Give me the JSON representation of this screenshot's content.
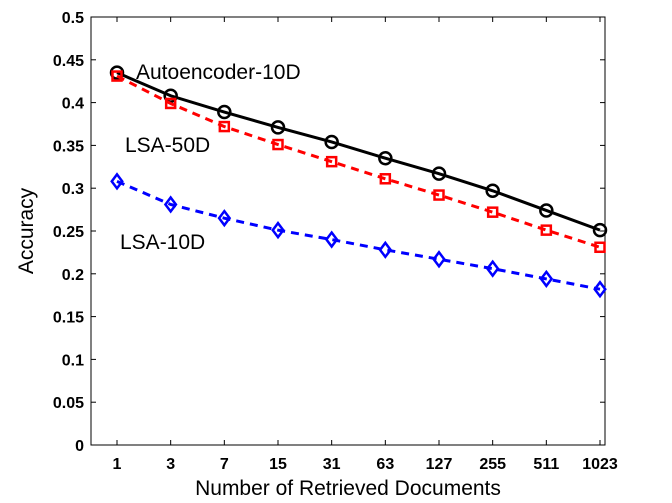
{
  "chart_data": {
    "type": "line",
    "title": "",
    "xlabel": "Number of Retrieved Documents",
    "ylabel": "Accuracy",
    "x": [
      "1",
      "3",
      "7",
      "15",
      "31",
      "63",
      "127",
      "255",
      "511",
      "1023"
    ],
    "ylim": [
      0,
      0.5
    ],
    "yticks": [
      "0",
      "0.05",
      "0.1",
      "0.15",
      "0.2",
      "0.25",
      "0.3",
      "0.35",
      "0.4",
      "0.45",
      "0.5"
    ],
    "grid": false,
    "legend": "none",
    "series": [
      {
        "name": "Autoencoder-10D",
        "color": "#000000",
        "line_style": "solid",
        "marker": "circle",
        "values": [
          0.435,
          0.408,
          0.389,
          0.371,
          0.354,
          0.335,
          0.317,
          0.297,
          0.274,
          0.251
        ]
      },
      {
        "name": "LSA-50D",
        "color": "#ff0000",
        "line_style": "dashed",
        "marker": "square",
        "values": [
          0.431,
          0.399,
          0.372,
          0.351,
          0.331,
          0.311,
          0.292,
          0.272,
          0.251,
          0.231
        ]
      },
      {
        "name": "LSA-10D",
        "color": "#0000ff",
        "line_style": "dashed",
        "marker": "diamond",
        "values": [
          0.308,
          0.281,
          0.265,
          0.251,
          0.24,
          0.228,
          0.217,
          0.206,
          0.194,
          0.182
        ]
      }
    ]
  }
}
